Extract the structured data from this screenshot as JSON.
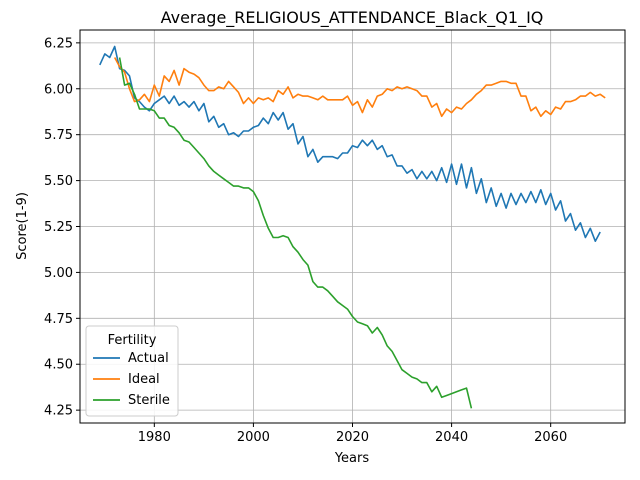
{
  "chart_data": {
    "type": "line",
    "title": "Average_RELIGIOUS_ATTENDANCE_Black_Q1_IQ",
    "xlabel": "Years",
    "ylabel": "Score(1-9)",
    "xlim": [
      1965,
      2075
    ],
    "ylim": [
      4.18,
      6.32
    ],
    "xticks": [
      1980,
      2000,
      2020,
      2040,
      2060
    ],
    "yticks": [
      4.25,
      4.5,
      4.75,
      5.0,
      5.25,
      5.5,
      5.75,
      6.0,
      6.25
    ],
    "xtick_labels": [
      "1980",
      "2000",
      "2020",
      "2040",
      "2060"
    ],
    "ytick_labels": [
      "4.25",
      "4.50",
      "4.75",
      "5.00",
      "5.25",
      "5.50",
      "5.75",
      "6.00",
      "6.25"
    ],
    "grid": true,
    "legend": {
      "title": "Fertility",
      "placement": "lower-left"
    },
    "series": [
      {
        "name": "Actual",
        "color": "#1f77b4",
        "x_start": 1969,
        "values": [
          6.13,
          6.19,
          6.17,
          6.23,
          6.11,
          6.1,
          6.07,
          5.95,
          5.93,
          5.9,
          5.88,
          5.92,
          5.94,
          5.96,
          5.92,
          5.96,
          5.91,
          5.93,
          5.9,
          5.93,
          5.88,
          5.92,
          5.82,
          5.85,
          5.79,
          5.81,
          5.75,
          5.76,
          5.74,
          5.77,
          5.77,
          5.79,
          5.8,
          5.84,
          5.81,
          5.87,
          5.83,
          5.87,
          5.78,
          5.81,
          5.7,
          5.74,
          5.63,
          5.67,
          5.6,
          5.63,
          5.63,
          5.63,
          5.62,
          5.65,
          5.65,
          5.69,
          5.68,
          5.72,
          5.69,
          5.72,
          5.67,
          5.69,
          5.63,
          5.64,
          5.58,
          5.58,
          5.54,
          5.56,
          5.51,
          5.55,
          5.51,
          5.55,
          5.5,
          5.57,
          5.49,
          5.59,
          5.48,
          5.59,
          5.46,
          5.57,
          5.43,
          5.51,
          5.38,
          5.46,
          5.36,
          5.43,
          5.35,
          5.43,
          5.37,
          5.43,
          5.38,
          5.44,
          5.38,
          5.45,
          5.37,
          5.43,
          5.34,
          5.39,
          5.28,
          5.32,
          5.23,
          5.27,
          5.19,
          5.24,
          5.17,
          5.22
        ]
      },
      {
        "name": "Ideal",
        "color": "#ff7f0e",
        "x_start": 1972,
        "values": [
          6.17,
          6.12,
          6.09,
          6.0,
          5.93,
          5.94,
          5.97,
          5.93,
          6.02,
          5.96,
          6.07,
          6.04,
          6.1,
          6.02,
          6.11,
          6.09,
          6.08,
          6.06,
          6.02,
          5.99,
          5.99,
          6.01,
          6.0,
          6.04,
          6.01,
          5.98,
          5.92,
          5.95,
          5.92,
          5.95,
          5.94,
          5.95,
          5.93,
          5.99,
          5.97,
          6.01,
          5.95,
          5.97,
          5.96,
          5.96,
          5.95,
          5.94,
          5.96,
          5.94,
          5.94,
          5.94,
          5.94,
          5.96,
          5.91,
          5.93,
          5.87,
          5.94,
          5.9,
          5.96,
          5.97,
          6.0,
          5.99,
          6.01,
          6.0,
          6.01,
          6.0,
          5.99,
          5.96,
          5.96,
          5.9,
          5.92,
          5.85,
          5.89,
          5.87,
          5.9,
          5.89,
          5.92,
          5.94,
          5.97,
          5.99,
          6.02,
          6.02,
          6.03,
          6.04,
          6.04,
          6.03,
          6.03,
          5.96,
          5.96,
          5.88,
          5.9,
          5.85,
          5.88,
          5.86,
          5.9,
          5.89,
          5.93,
          5.93,
          5.94,
          5.96,
          5.96,
          5.98,
          5.96,
          5.97,
          5.95
        ]
      },
      {
        "name": "Sterile",
        "color": "#2ca02c",
        "x_start": 1973,
        "values": [
          6.17,
          6.02,
          6.03,
          5.97,
          5.89,
          5.89,
          5.89,
          5.88,
          5.84,
          5.84,
          5.8,
          5.79,
          5.76,
          5.72,
          5.71,
          5.68,
          5.65,
          5.62,
          5.58,
          5.55,
          5.53,
          5.51,
          5.49,
          5.47,
          5.47,
          5.46,
          5.46,
          5.44,
          5.39,
          5.31,
          5.24,
          5.19,
          5.19,
          5.2,
          5.19,
          5.14,
          5.11,
          5.07,
          5.04,
          4.95,
          4.92,
          4.92,
          4.9,
          4.87,
          4.84,
          4.82,
          4.8,
          4.76,
          4.73,
          4.72,
          4.71,
          4.67,
          4.7,
          4.66,
          4.6,
          4.57,
          4.52,
          4.47,
          4.45,
          4.43,
          4.42,
          4.4,
          4.4,
          4.35,
          4.38,
          4.32,
          4.33,
          4.34,
          4.35,
          4.36,
          4.37,
          4.26
        ]
      }
    ]
  }
}
